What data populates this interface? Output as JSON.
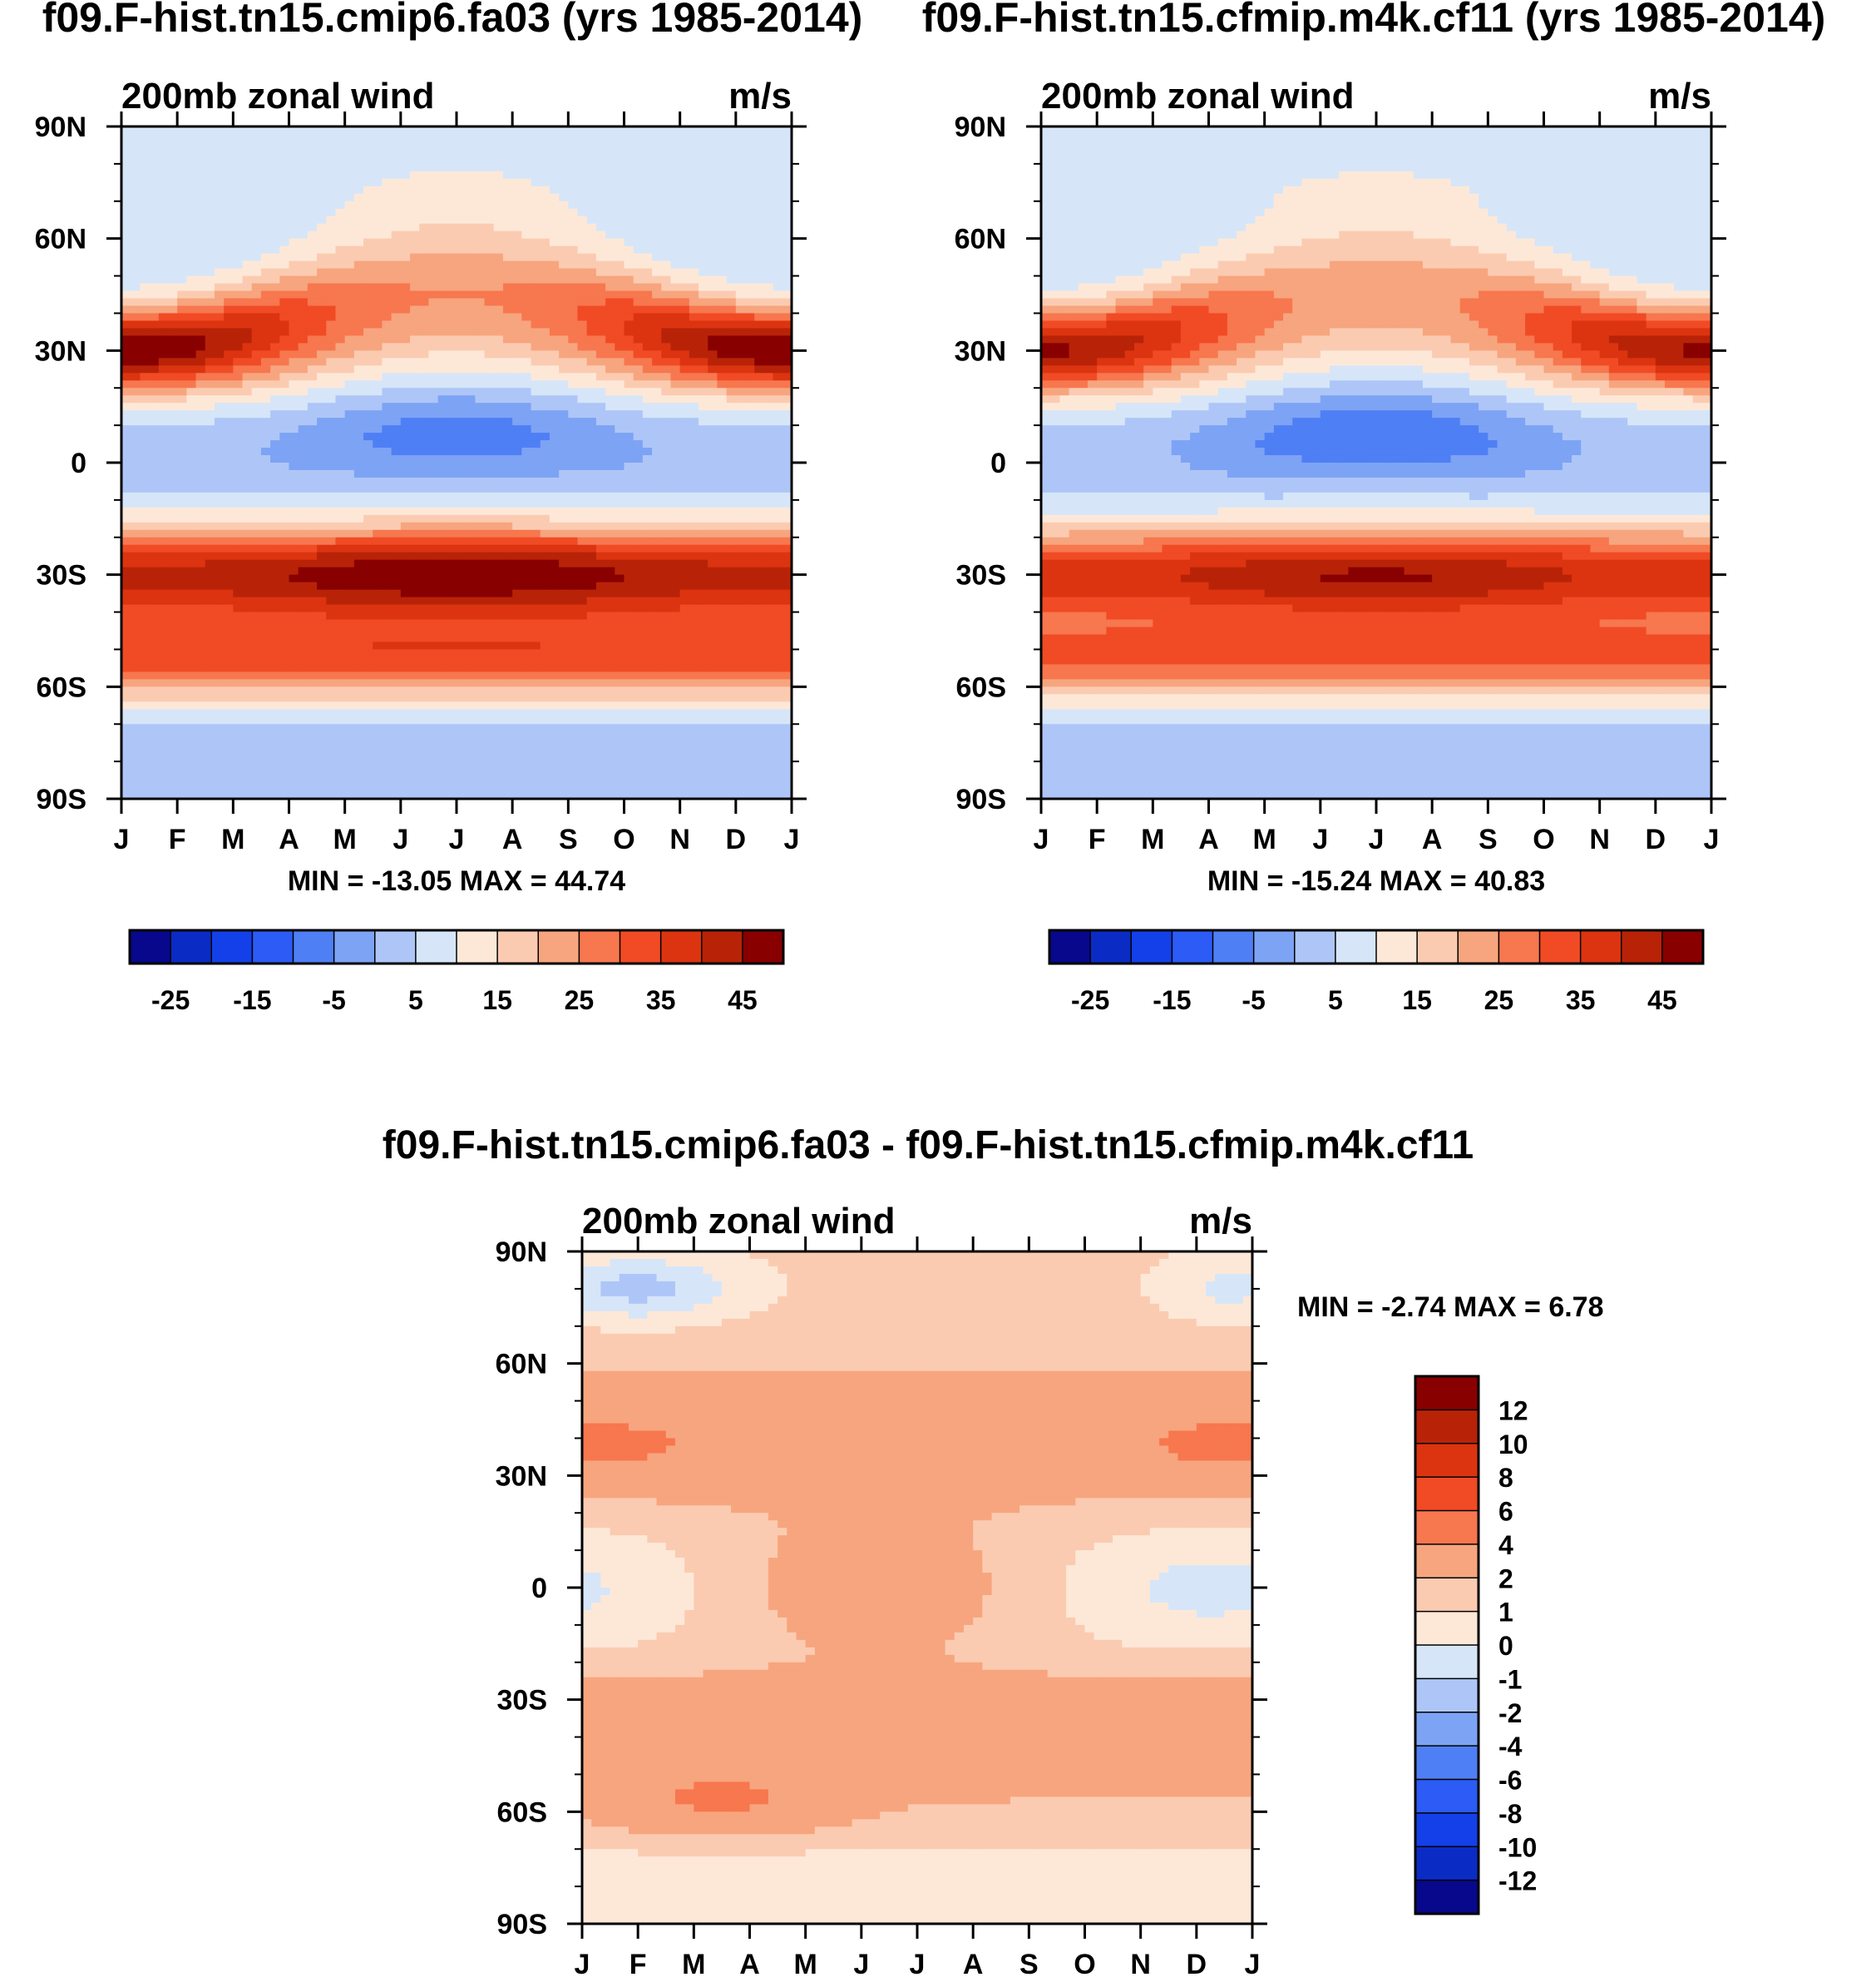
{
  "figure": {
    "panel_a_title": "f09.F-hist.tn15.cmip6.fa03 (yrs 1985-2014)",
    "panel_b_title": "f09.F-hist.tn15.cfmip.m4k.cf11 (yrs 1985-2014)",
    "diff_title": "f09.F-hist.tn15.cmip6.fa03 - f09.F-hist.tn15.cfmip.m4k.cf11"
  },
  "chart_data": [
    {
      "id": "panel_a",
      "type": "heatmap",
      "title": "f09.F-hist.tn15.cmip6.fa03 (yrs 1985-2014)",
      "subtitle_left": "200mb zonal wind",
      "subtitle_right": "m/s",
      "x_tick_labels": [
        "J",
        "F",
        "M",
        "A",
        "M",
        "J",
        "J",
        "A",
        "S",
        "O",
        "N",
        "D",
        "J"
      ],
      "y_tick_labels": [
        "90N",
        "60N",
        "30N",
        "0",
        "30S",
        "60S",
        "90S"
      ],
      "y_range": [
        -90,
        90
      ],
      "x_range": [
        0,
        12
      ],
      "min": -13.05,
      "max": 44.74,
      "stats_label": "MIN = -13.05 MAX =  44.74",
      "levels": [
        -30,
        -25,
        -20,
        -15,
        -10,
        -5,
        0,
        5,
        10,
        15,
        20,
        25,
        30,
        35,
        40,
        45
      ],
      "colorbar_labels": [
        "-25",
        "-15",
        "-5",
        "5",
        "15",
        "25",
        "35",
        "45"
      ],
      "features": {
        "equator_min": -13.05,
        "nh_jet_winter": 44.74,
        "nh_jet_summer": 20,
        "sh_jet_winter": 44,
        "sh_jet_summer": 36
      }
    },
    {
      "id": "panel_b",
      "type": "heatmap",
      "title": "f09.F-hist.tn15.cfmip.m4k.cf11 (yrs 1985-2014)",
      "subtitle_left": "200mb zonal wind",
      "subtitle_right": "m/s",
      "x_tick_labels": [
        "J",
        "F",
        "M",
        "A",
        "M",
        "J",
        "J",
        "A",
        "S",
        "O",
        "N",
        "D",
        "J"
      ],
      "y_tick_labels": [
        "90N",
        "60N",
        "30N",
        "0",
        "30S",
        "60S",
        "90S"
      ],
      "y_range": [
        -90,
        90
      ],
      "x_range": [
        0,
        12
      ],
      "min": -15.24,
      "max": 40.83,
      "stats_label": "MIN = -15.24 MAX =  40.83",
      "levels": [
        -30,
        -25,
        -20,
        -15,
        -10,
        -5,
        0,
        5,
        10,
        15,
        20,
        25,
        30,
        35,
        40,
        45
      ],
      "colorbar_labels": [
        "-25",
        "-15",
        "-5",
        "5",
        "15",
        "25",
        "35",
        "45"
      ],
      "features": {
        "equator_min": -15.24,
        "nh_jet_winter": 40.83,
        "nh_jet_summer": 18,
        "sh_jet_winter": 40,
        "sh_jet_summer": 32
      }
    },
    {
      "id": "panel_diff",
      "type": "heatmap",
      "title": "f09.F-hist.tn15.cmip6.fa03 - f09.F-hist.tn15.cfmip.m4k.cf11",
      "subtitle_left": "200mb zonal wind",
      "subtitle_right": "m/s",
      "x_tick_labels": [
        "J",
        "F",
        "M",
        "A",
        "M",
        "J",
        "J",
        "A",
        "S",
        "O",
        "N",
        "D",
        "J"
      ],
      "y_tick_labels": [
        "90N",
        "60N",
        "30N",
        "0",
        "30S",
        "60S",
        "90S"
      ],
      "y_range": [
        -90,
        90
      ],
      "x_range": [
        0,
        12
      ],
      "min": -2.74,
      "max": 6.78,
      "stats_label": "MIN =  -2.74 MAX =   6.78",
      "levels": [
        -12,
        -10,
        -8,
        -6,
        -4,
        -2,
        -1,
        0,
        1,
        2,
        4,
        6,
        8,
        10,
        12
      ],
      "colorbar_labels": [
        "12",
        "10",
        "8",
        "6",
        "4",
        "2",
        "1",
        "0",
        "-1",
        "-2",
        "-4",
        "-6",
        "-8",
        "-10",
        "-12"
      ]
    }
  ],
  "colors": {
    "palette": [
      "#08088c",
      "#0a2cc4",
      "#1340e8",
      "#2c5bf5",
      "#4f7ff4",
      "#7da3f5",
      "#aec6f7",
      "#d6e6f8",
      "#fde8d8",
      "#fbcbb1",
      "#f7a57e",
      "#f7774f",
      "#f04b25",
      "#dc3410",
      "#b82308",
      "#880000"
    ]
  }
}
